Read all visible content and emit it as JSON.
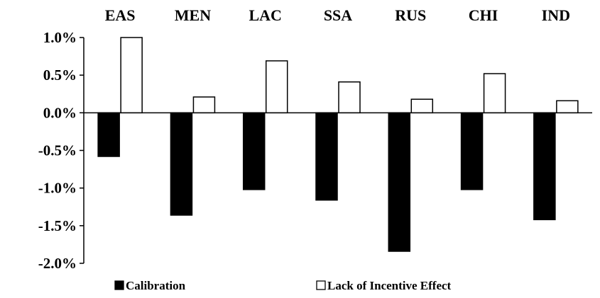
{
  "chart_data": {
    "type": "bar",
    "categories": [
      "EAS",
      "MEN",
      "LAC",
      "SSA",
      "RUS",
      "CHI",
      "IND"
    ],
    "series": [
      {
        "name": "Calibration",
        "color": "#000000",
        "values": [
          -0.58,
          -1.36,
          -1.02,
          -1.16,
          -1.84,
          -1.02,
          -1.42
        ]
      },
      {
        "name": "Lack of Incentive Effect",
        "color": "#ffffff",
        "values": [
          1.0,
          0.21,
          0.69,
          0.41,
          0.18,
          0.52,
          0.16
        ]
      }
    ],
    "yticks": [
      "1.0%",
      "0.5%",
      "0.0%",
      "-0.5%",
      "-1.0%",
      "-1.5%",
      "-2.0%"
    ],
    "ylim": [
      -2.0,
      1.0
    ],
    "unit": "%",
    "grid": false,
    "category_labels_position": "top",
    "legend_position": "bottom"
  }
}
